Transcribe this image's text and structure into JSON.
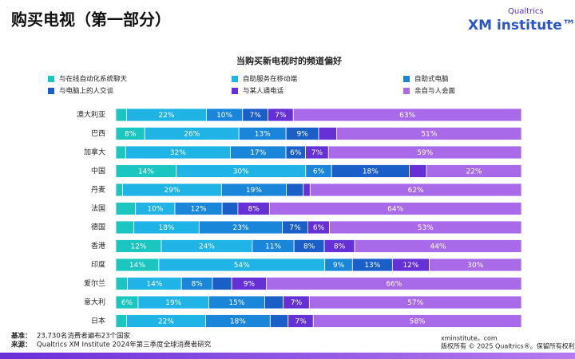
{
  "header": {
    "title": "购买电视（第一部分）",
    "logo_brand": "Qualtrics",
    "logo_name": "XM institute™"
  },
  "chart_data": {
    "type": "stacked-bar-normalized",
    "title": "当购买新电视时的频道偏好",
    "categories": [
      "澳大利亚",
      "巴西",
      "加拿大",
      "中国",
      "丹麦",
      "法国",
      "德国",
      "香港",
      "印度",
      "爱尔兰",
      "意大利",
      "日本"
    ],
    "series": [
      {
        "name": "与在线自动化系统聊天",
        "color": "#1cc6c0",
        "values": [
          3,
          8,
          3,
          14,
          2,
          5,
          5,
          12,
          14,
          3,
          6,
          3
        ],
        "value_labels": [
          null,
          "8%",
          null,
          "14%",
          null,
          null,
          null,
          "12%",
          "14%",
          null,
          "6%",
          null
        ]
      },
      {
        "name": "自助服务在移动端",
        "color": "#1fb3e6",
        "values": [
          22,
          26,
          32,
          30,
          29,
          10,
          18,
          24,
          54,
          14,
          19,
          22
        ],
        "value_labels": [
          "22%",
          "26%",
          "32%",
          "30%",
          "29%",
          "10%",
          "18%",
          "24%",
          "54%",
          "14%",
          "19%",
          "22%"
        ]
      },
      {
        "name": "自助式电脑",
        "color": "#1a86d9",
        "values": [
          10,
          13,
          17,
          6,
          19,
          12,
          23,
          11,
          9,
          8,
          15,
          18
        ],
        "value_labels": [
          "10%",
          "13%",
          "17%",
          "6%",
          "19%",
          "12%",
          "23%",
          "11%",
          "9%",
          "8%",
          "15%",
          "18%"
        ]
      },
      {
        "name": "与电脑上的人交谈",
        "color": "#1a5fc8",
        "values": [
          7,
          9,
          6,
          18,
          5,
          4,
          7,
          8,
          13,
          5,
          5,
          5
        ],
        "value_labels": [
          "7%",
          "9%",
          "6%",
          "18%",
          null,
          null,
          "7%",
          "8%",
          "13%",
          null,
          null,
          null
        ]
      },
      {
        "name": "与某人通电话",
        "color": "#6531d6",
        "values": [
          7,
          5,
          7,
          4,
          2,
          8,
          6,
          8,
          12,
          9,
          7,
          7
        ],
        "value_labels": [
          "7%",
          null,
          "7%",
          null,
          null,
          "8%",
          "6%",
          "8%",
          "12%",
          "9%",
          "7%",
          "7%"
        ]
      },
      {
        "name": "亲自与人会面",
        "color": "#a86ae8",
        "values": [
          63,
          51,
          59,
          22,
          62,
          64,
          53,
          44,
          30,
          66,
          57,
          58
        ],
        "value_labels": [
          "63%",
          "51%",
          "59%",
          "22%",
          "62%",
          "64%",
          "53%",
          "44%",
          "30%",
          "66%",
          "57%",
          "58%"
        ]
      }
    ]
  },
  "footer": {
    "base_label": "基准：",
    "base_text": "23,730名消费者遍布23个国家",
    "source_label": "来源：",
    "source_text": "Qualtrics XM Institute 2024年第三季度全球消费者研究",
    "site": "xminstitute。com",
    "copyright": "版权所有 © 2025 Qualtrics®。保留所有权利"
  }
}
